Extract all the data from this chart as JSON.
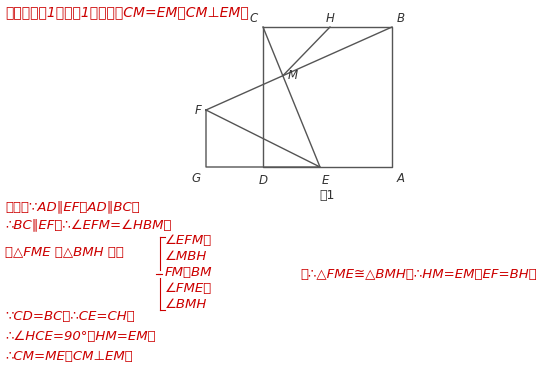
{
  "bg_color": "#ffffff",
  "fig_label": "图1",
  "geo_color": "#555555",
  "text_color": "#cc0000",
  "label_color": "#333333",
  "title": "【解析】（1）如图1，结论：CM=EM，CM⊥EM．",
  "line1": "理由：∵AD∥EF，AD∥BC，",
  "line2": "∴BC∥EF，∴∠EFM=∠HBM，",
  "line_left": "在△FME 和△BMH 中，",
  "brace_lines": [
    "∠EFM＝",
    "∠MBH",
    "FM＝BM",
    "∠FME＝",
    "∠BMH"
  ],
  "mid_result": "，∴△FME≅△BMH，∴HM=EM，EF=BH，",
  "line_cd": "∵CD=BC，∴CE=CH，",
  "line_hce": "∴∠HCE=90°，HM=EM，",
  "line_cm": "∴CM=ME，CM⊥EM．",
  "lw": 1.0
}
